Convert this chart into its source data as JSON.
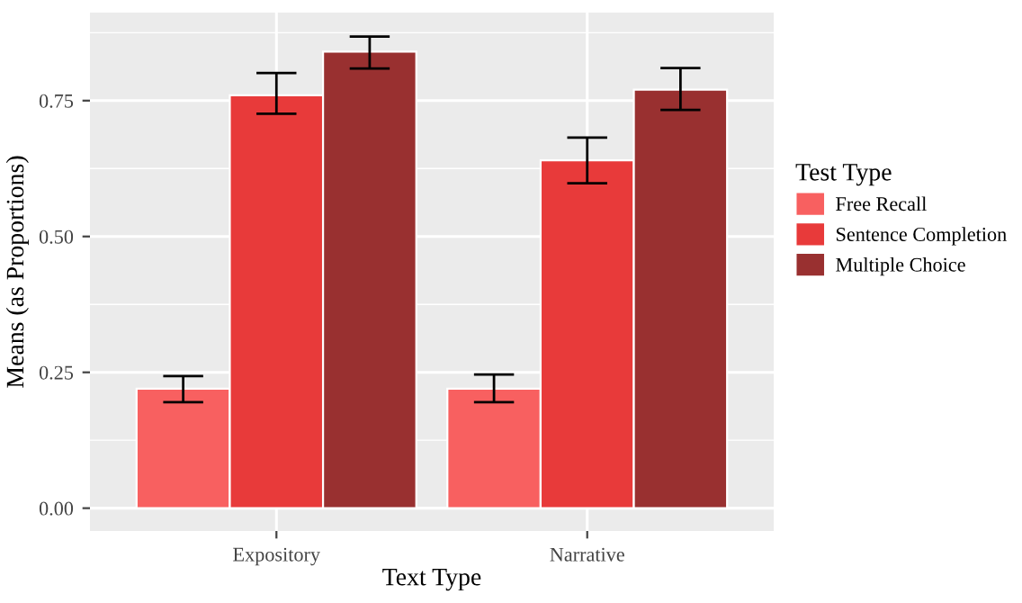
{
  "chart_data": {
    "type": "bar",
    "xlabel": "Text Type",
    "ylabel": "Means (as Proportions)",
    "legend_title": "Test Type",
    "categories": [
      "Expository",
      "Narrative"
    ],
    "series": [
      {
        "name": "Free Recall",
        "color": "#f86060",
        "values": [
          0.22,
          0.22
        ],
        "errors": [
          [
            0.195,
            0.243
          ],
          [
            0.195,
            0.246
          ]
        ]
      },
      {
        "name": "Sentence Completion",
        "color": "#e83a3a",
        "values": [
          0.76,
          0.64
        ],
        "errors": [
          [
            0.726,
            0.801
          ],
          [
            0.598,
            0.682
          ]
        ]
      },
      {
        "name": "Multiple Choice",
        "color": "#993030",
        "values": [
          0.84,
          0.77
        ],
        "errors": [
          [
            0.809,
            0.868
          ],
          [
            0.733,
            0.81
          ]
        ]
      }
    ],
    "ylim": [
      -0.042,
      0.912
    ],
    "yticks": [
      {
        "value": 0,
        "label": "0.00"
      },
      {
        "value": 0.25,
        "label": "0.25"
      },
      {
        "value": 0.5,
        "label": "0.50"
      },
      {
        "value": 0.75,
        "label": "0.75"
      }
    ],
    "grid": true,
    "legend": "right"
  }
}
